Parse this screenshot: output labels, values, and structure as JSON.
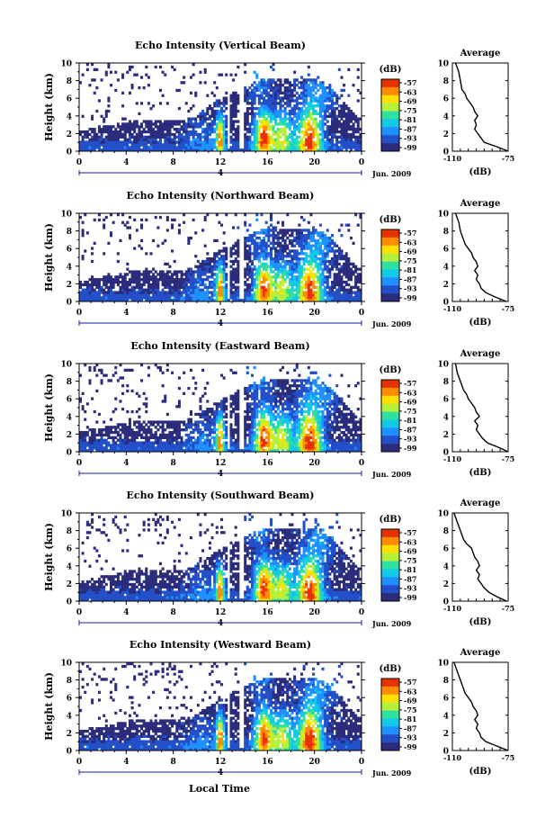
{
  "figure": {
    "date_label": "Jun. 2009",
    "day_label": "4",
    "xlabel": "Local Time",
    "colorbar_unit": "(dB)",
    "colorbar_ticks": [
      "-57",
      "-63",
      "-69",
      "-75",
      "-81",
      "-87",
      "-93",
      "-99"
    ],
    "panel_ylabel": "Height (km)",
    "avg_title": "Average",
    "avg_xlabel": "(dB)"
  },
  "chart_data": [
    {
      "type": "heatmap",
      "title": "Echo Intensity (Vertical Beam)",
      "xlabel": "Local Time",
      "ylabel": "Height (km)",
      "x_ticks": [
        "0",
        "4",
        "8",
        "12",
        "16",
        "20",
        "0"
      ],
      "y_ticks": [
        "0",
        "2",
        "4",
        "6",
        "8",
        "10"
      ],
      "xlim": [
        0,
        24
      ],
      "ylim": [
        0,
        10
      ],
      "colorbar": {
        "label": "(dB)",
        "range": [
          -99,
          -57
        ],
        "ticks": [
          -57,
          -63,
          -69,
          -75,
          -81,
          -87,
          -93,
          -99
        ]
      },
      "colormap": [
        "#2b2c7c",
        "#2350c8",
        "#1e90ff",
        "#12c9e8",
        "#30e0a0",
        "#b4f03c",
        "#ffe000",
        "#ff8c00",
        "#e63200"
      ],
      "seed": 11
    },
    {
      "type": "line",
      "title": "Average",
      "xlabel": "(dB)",
      "x_ticks": [
        "-110",
        "-75"
      ],
      "y_ticks": [
        "0",
        "2",
        "4",
        "6",
        "8",
        "10"
      ],
      "xlim": [
        -110,
        -75
      ],
      "ylim": [
        0,
        10
      ],
      "series": [
        {
          "x": [
            -75,
            -82,
            -90,
            -92,
            -94,
            -96,
            -95,
            -96,
            -94,
            -96,
            -97,
            -99,
            -101,
            -102,
            -104,
            -105,
            -106,
            -108
          ],
          "y": [
            0,
            0.5,
            1,
            1.5,
            2,
            2.5,
            3,
            3.5,
            4,
            4.5,
            5,
            5.5,
            6,
            6.5,
            7,
            8,
            9,
            10
          ]
        }
      ]
    },
    {
      "type": "heatmap",
      "title": "Echo Intensity (Northward Beam)",
      "xlabel": "Local Time",
      "ylabel": "Height (km)",
      "x_ticks": [
        "0",
        "4",
        "8",
        "12",
        "16",
        "20",
        "0"
      ],
      "y_ticks": [
        "0",
        "2",
        "4",
        "6",
        "8",
        "10"
      ],
      "xlim": [
        0,
        24
      ],
      "ylim": [
        0,
        10
      ],
      "colorbar": {
        "label": "(dB)",
        "range": [
          -99,
          -57
        ],
        "ticks": [
          -57,
          -63,
          -69,
          -75,
          -81,
          -87,
          -93,
          -99
        ]
      },
      "colormap": [
        "#2b2c7c",
        "#2350c8",
        "#1e90ff",
        "#12c9e8",
        "#30e0a0",
        "#b4f03c",
        "#ffe000",
        "#ff8c00",
        "#e63200"
      ],
      "seed": 23
    },
    {
      "type": "line",
      "title": "Average",
      "xlabel": "(dB)",
      "x_ticks": [
        "-110",
        "-75"
      ],
      "y_ticks": [
        "0",
        "2",
        "4",
        "6",
        "8",
        "10"
      ],
      "xlim": [
        -110,
        -75
      ],
      "ylim": [
        0,
        10
      ],
      "series": [
        {
          "x": [
            -76,
            -83,
            -89,
            -92,
            -93,
            -95,
            -94,
            -96,
            -94,
            -95,
            -97,
            -98,
            -100,
            -102,
            -103,
            -105,
            -106,
            -108
          ],
          "y": [
            0,
            0.5,
            1,
            1.5,
            2,
            2.5,
            3,
            3.5,
            4,
            4.5,
            5,
            5.5,
            6,
            6.5,
            7,
            8,
            9,
            10
          ]
        }
      ]
    },
    {
      "type": "heatmap",
      "title": "Echo Intensity (Eastward Beam)",
      "xlabel": "Local Time",
      "ylabel": "Height (km)",
      "x_ticks": [
        "0",
        "4",
        "8",
        "12",
        "16",
        "20",
        "0"
      ],
      "y_ticks": [
        "0",
        "2",
        "4",
        "6",
        "8",
        "10"
      ],
      "xlim": [
        0,
        24
      ],
      "ylim": [
        0,
        10
      ],
      "colorbar": {
        "label": "(dB)",
        "range": [
          -99,
          -57
        ],
        "ticks": [
          -57,
          -63,
          -69,
          -75,
          -81,
          -87,
          -93,
          -99
        ]
      },
      "colormap": [
        "#2b2c7c",
        "#2350c8",
        "#1e90ff",
        "#12c9e8",
        "#30e0a0",
        "#b4f03c",
        "#ffe000",
        "#ff8c00",
        "#e63200"
      ],
      "seed": 37
    },
    {
      "type": "line",
      "title": "Average",
      "xlabel": "(dB)",
      "x_ticks": [
        "-110",
        "-75"
      ],
      "y_ticks": [
        "0",
        "2",
        "4",
        "6",
        "8",
        "10"
      ],
      "xlim": [
        -110,
        -75
      ],
      "ylim": [
        0,
        10
      ],
      "series": [
        {
          "x": [
            -75,
            -81,
            -88,
            -91,
            -93,
            -95,
            -94,
            -96,
            -93,
            -95,
            -96,
            -98,
            -100,
            -101,
            -103,
            -105,
            -107,
            -108
          ],
          "y": [
            0,
            0.5,
            1,
            1.5,
            2,
            2.5,
            3,
            3.5,
            4,
            4.5,
            5,
            5.5,
            6,
            6.5,
            7,
            8,
            9,
            10
          ]
        }
      ]
    },
    {
      "type": "heatmap",
      "title": "Echo Intensity (Southward Beam)",
      "xlabel": "Local Time",
      "ylabel": "Height (km)",
      "x_ticks": [
        "0",
        "4",
        "8",
        "12",
        "16",
        "20",
        "0"
      ],
      "y_ticks": [
        "0",
        "2",
        "4",
        "6",
        "8",
        "10"
      ],
      "xlim": [
        0,
        24
      ],
      "ylim": [
        0,
        10
      ],
      "colorbar": {
        "label": "(dB)",
        "range": [
          -99,
          -57
        ],
        "ticks": [
          -57,
          -63,
          -69,
          -75,
          -81,
          -87,
          -93,
          -99
        ]
      },
      "colormap": [
        "#2b2c7c",
        "#2350c8",
        "#1e90ff",
        "#12c9e8",
        "#30e0a0",
        "#b4f03c",
        "#ffe000",
        "#ff8c00",
        "#e63200"
      ],
      "seed": 53
    },
    {
      "type": "line",
      "title": "Average",
      "xlabel": "(dB)",
      "x_ticks": [
        "-110",
        "-75"
      ],
      "y_ticks": [
        "0",
        "2",
        "4",
        "6",
        "8",
        "10"
      ],
      "xlim": [
        -110,
        -75
      ],
      "ylim": [
        0,
        10
      ],
      "series": [
        {
          "x": [
            -76,
            -82,
            -87,
            -90,
            -92,
            -94,
            -93,
            -95,
            -93,
            -94,
            -96,
            -97,
            -98,
            -101,
            -103,
            -105,
            -107,
            -109
          ],
          "y": [
            0,
            0.5,
            1,
            1.5,
            2,
            2.5,
            3,
            3.5,
            4,
            4.5,
            5,
            5.5,
            6,
            6.5,
            7,
            8,
            9,
            10
          ]
        }
      ]
    },
    {
      "type": "heatmap",
      "title": "Echo Intensity (Westward Beam)",
      "xlabel": "Local Time",
      "ylabel": "Height (km)",
      "x_ticks": [
        "0",
        "4",
        "8",
        "12",
        "16",
        "20",
        "0"
      ],
      "y_ticks": [
        "0",
        "2",
        "4",
        "6",
        "8",
        "10"
      ],
      "xlim": [
        0,
        24
      ],
      "ylim": [
        0,
        10
      ],
      "colorbar": {
        "label": "(dB)",
        "range": [
          -99,
          -57
        ],
        "ticks": [
          -57,
          -63,
          -69,
          -75,
          -81,
          -87,
          -93,
          -99
        ]
      },
      "colormap": [
        "#2b2c7c",
        "#2350c8",
        "#1e90ff",
        "#12c9e8",
        "#30e0a0",
        "#b4f03c",
        "#ffe000",
        "#ff8c00",
        "#e63200"
      ],
      "seed": 71
    },
    {
      "type": "line",
      "title": "Average",
      "xlabel": "(dB)",
      "x_ticks": [
        "-110",
        "-75"
      ],
      "y_ticks": [
        "0",
        "2",
        "4",
        "6",
        "8",
        "10"
      ],
      "xlim": [
        -110,
        -75
      ],
      "ylim": [
        0,
        10
      ],
      "series": [
        {
          "x": [
            -75,
            -82,
            -89,
            -92,
            -93,
            -95,
            -94,
            -96,
            -94,
            -95,
            -97,
            -98,
            -100,
            -102,
            -103,
            -105,
            -107,
            -109
          ],
          "y": [
            0,
            0.5,
            1,
            1.5,
            2,
            2.5,
            3,
            3.5,
            4,
            4.5,
            5,
            5.5,
            6,
            6.5,
            7,
            8,
            9,
            10
          ]
        }
      ]
    }
  ]
}
